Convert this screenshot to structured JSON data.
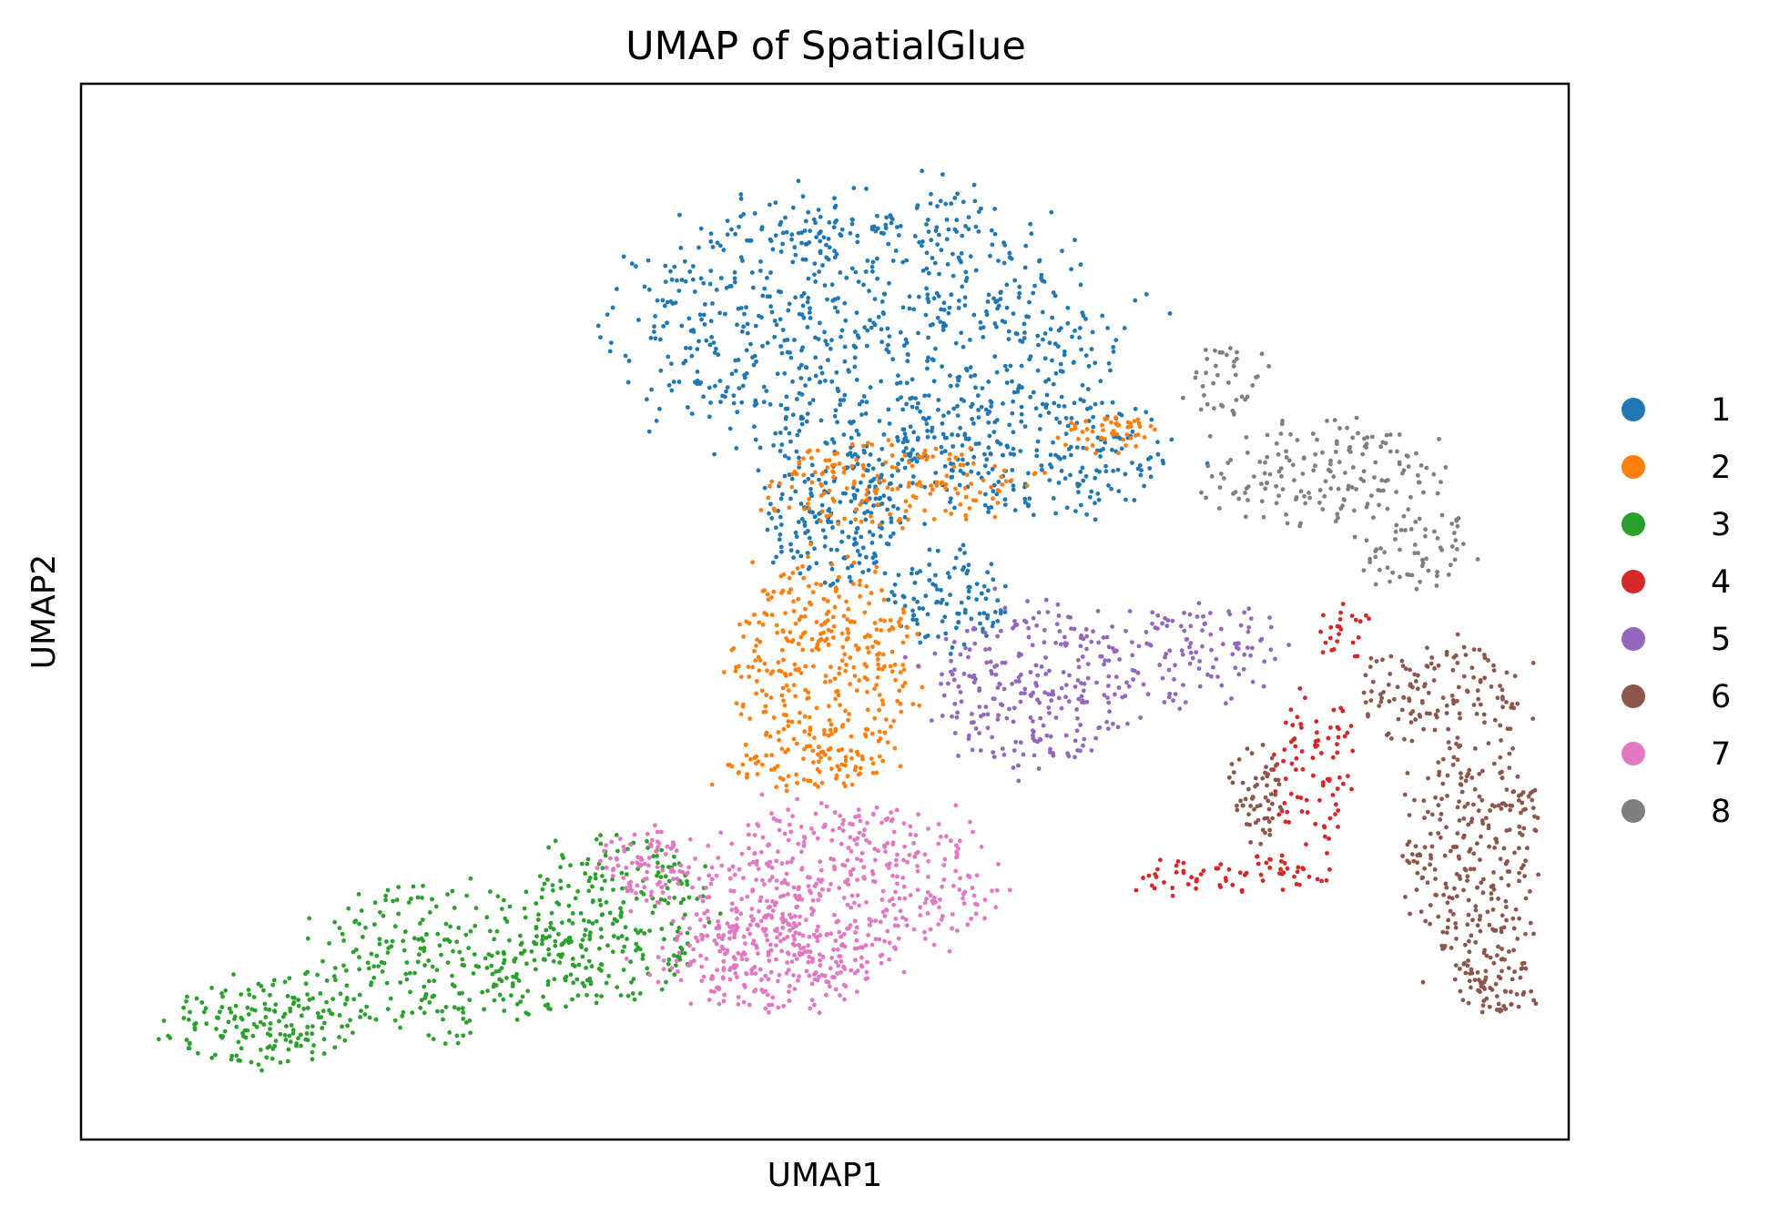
{
  "chart_data": {
    "type": "scatter",
    "title": "UMAP of SpatialGlue",
    "xlabel": "UMAP1",
    "ylabel": "UMAP2",
    "xlim": [
      0,
      100
    ],
    "ylim": [
      0,
      100
    ],
    "xticks_shown": false,
    "yticks_shown": false,
    "grid": false,
    "legend_position": "right, outside plot",
    "point_size": 2.4,
    "series": [
      {
        "name": "1",
        "color": "#1f77b4",
        "n": 1400,
        "regions": [
          {
            "cx": 53,
            "cy": 77,
            "rx": 16,
            "ry": 13,
            "w": 1.0
          },
          {
            "cx": 63,
            "cy": 65,
            "rx": 11,
            "ry": 6,
            "w": 0.35
          },
          {
            "cx": 51,
            "cy": 59,
            "rx": 5,
            "ry": 6,
            "w": 0.25
          },
          {
            "cx": 58,
            "cy": 51,
            "rx": 4,
            "ry": 5,
            "w": 0.15
          }
        ]
      },
      {
        "name": "2",
        "color": "#ff7f0e",
        "n": 650,
        "regions": [
          {
            "cx": 50,
            "cy": 45,
            "rx": 6,
            "ry": 10,
            "w": 1.0
          },
          {
            "cx": 55,
            "cy": 62,
            "rx": 9,
            "ry": 4,
            "w": 0.5
          },
          {
            "cx": 69,
            "cy": 67,
            "rx": 3,
            "ry": 2,
            "w": 0.15
          },
          {
            "cx": 49,
            "cy": 35,
            "rx": 6,
            "ry": 2,
            "w": 0.25
          }
        ]
      },
      {
        "name": "3",
        "color": "#2ca02c",
        "n": 700,
        "regions": [
          {
            "cx": 25,
            "cy": 17,
            "rx": 10,
            "ry": 7,
            "w": 1.0
          },
          {
            "cx": 12,
            "cy": 11,
            "rx": 6,
            "ry": 4,
            "w": 0.5
          },
          {
            "cx": 36,
            "cy": 21,
            "rx": 6,
            "ry": 8,
            "w": 0.6
          }
        ]
      },
      {
        "name": "4",
        "color": "#d62728",
        "n": 180,
        "regions": [
          {
            "cx": 77,
            "cy": 25,
            "rx": 7,
            "ry": 2,
            "w": 0.6
          },
          {
            "cx": 83,
            "cy": 35,
            "rx": 3,
            "ry": 8,
            "w": 0.7
          },
          {
            "cx": 85,
            "cy": 48,
            "rx": 2,
            "ry": 3,
            "w": 0.25
          }
        ]
      },
      {
        "name": "5",
        "color": "#9467bd",
        "n": 380,
        "regions": [
          {
            "cx": 64,
            "cy": 43,
            "rx": 7,
            "ry": 8,
            "w": 1.0
          },
          {
            "cx": 75,
            "cy": 46,
            "rx": 6,
            "ry": 5,
            "w": 0.5
          }
        ]
      },
      {
        "name": "6",
        "color": "#8c564b",
        "n": 550,
        "regions": [
          {
            "cx": 94,
            "cy": 27,
            "rx": 5,
            "ry": 10,
            "w": 1.0
          },
          {
            "cx": 92,
            "cy": 42,
            "rx": 6,
            "ry": 5,
            "w": 0.6
          },
          {
            "cx": 79,
            "cy": 33,
            "rx": 2,
            "ry": 5,
            "w": 0.2
          },
          {
            "cx": 95,
            "cy": 15,
            "rx": 3,
            "ry": 3,
            "w": 0.25
          }
        ]
      },
      {
        "name": "7",
        "color": "#e377c2",
        "n": 800,
        "regions": [
          {
            "cx": 51,
            "cy": 24,
            "rx": 10,
            "ry": 8,
            "w": 1.0
          },
          {
            "cx": 46,
            "cy": 17,
            "rx": 7,
            "ry": 5,
            "w": 0.5
          },
          {
            "cx": 38,
            "cy": 26,
            "rx": 3,
            "ry": 4,
            "w": 0.2
          }
        ]
      },
      {
        "name": "8",
        "color": "#7f7f7f",
        "n": 270,
        "regions": [
          {
            "cx": 83,
            "cy": 63,
            "rx": 8,
            "ry": 5,
            "w": 1.0
          },
          {
            "cx": 90,
            "cy": 56,
            "rx": 4,
            "ry": 4,
            "w": 0.5
          },
          {
            "cx": 77,
            "cy": 72,
            "rx": 3,
            "ry": 4,
            "w": 0.3
          }
        ]
      }
    ]
  }
}
